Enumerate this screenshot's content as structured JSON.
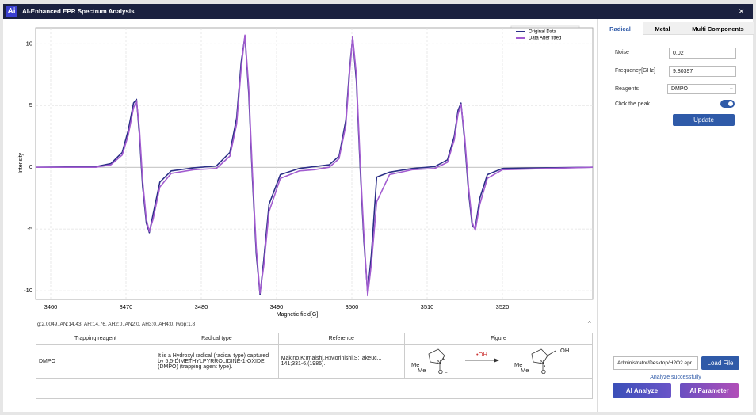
{
  "window": {
    "logo": "Ai",
    "title": "AI-Enhanced EPR Spectrum Analysis",
    "close": "×"
  },
  "chart_data": {
    "type": "line",
    "x_label": "Magnetic field[G]",
    "y_label": "Intensity",
    "x": [
      3458,
      3466,
      3468,
      3469.5,
      3470.3,
      3471,
      3471.4,
      3471.8,
      3472.2,
      3472.7,
      3473.1,
      3473.6,
      3474.5,
      3476,
      3479,
      3482,
      3483.8,
      3484.7,
      3485.3,
      3485.8,
      3486.3,
      3486.8,
      3487.3,
      3487.8,
      3488.3,
      3489,
      3490.5,
      3493,
      3495,
      3497,
      3498.3,
      3499.2,
      3499.7,
      3500.1,
      3500.6,
      3501.1,
      3501.6,
      3502.1,
      3502.6,
      3503.3,
      3505,
      3508,
      3511,
      3512.7,
      3513.6,
      3514.1,
      3514.5,
      3515,
      3515.5,
      3516,
      3516.4,
      3517,
      3518,
      3520,
      3532
    ],
    "series": [
      {
        "name": "Original Data",
        "color": "#2b2f86",
        "values": [
          0,
          0.05,
          0.3,
          1.2,
          3,
          5.2,
          5.5,
          2.5,
          -1.5,
          -4.5,
          -5.3,
          -3.8,
          -1.2,
          -0.3,
          -0.05,
          0.1,
          1.2,
          4,
          8.5,
          10.6,
          6,
          -1,
          -7,
          -10.3,
          -7.5,
          -3,
          -0.6,
          -0.1,
          0.05,
          0.2,
          0.9,
          3.8,
          8,
          10.5,
          7,
          0,
          -6,
          -10.2,
          -7,
          -0.8,
          -0.4,
          -0.1,
          0.05,
          0.6,
          2.5,
          4.6,
          5.2,
          2,
          -2,
          -4.8,
          -4.9,
          -2.5,
          -0.6,
          -0.1,
          0
        ]
      },
      {
        "name": "Data After fitted",
        "color": "#a25cd0",
        "values": [
          0,
          0,
          0.2,
          1,
          2.6,
          4.8,
          5.4,
          3,
          -1,
          -4.2,
          -5.2,
          -4.2,
          -1.6,
          -0.5,
          -0.2,
          -0.1,
          0.9,
          3.5,
          8,
          10.7,
          6.5,
          -0.5,
          -6.5,
          -10.2,
          -8,
          -3.6,
          -0.9,
          -0.3,
          -0.2,
          0,
          0.7,
          3.4,
          7.6,
          10.6,
          7.5,
          0.5,
          -5.5,
          -10.4,
          -7.8,
          -2.8,
          -0.6,
          -0.2,
          -0.1,
          0.4,
          2.2,
          4.3,
          5.1,
          2.4,
          -1.6,
          -4.5,
          -5.1,
          -3,
          -0.9,
          -0.2,
          0
        ]
      }
    ],
    "xlim": [
      3458,
      3532
    ],
    "ylim": [
      -10.7,
      11.3
    ],
    "xticks": [
      3460,
      3470,
      3480,
      3490,
      3500,
      3510,
      3520
    ],
    "yticks": [
      -10,
      -5,
      0,
      5,
      10
    ],
    "grid": true,
    "legend": "upper right"
  },
  "results": {
    "parameters": "g:2.0049, AN:14.43, AH:14.76, AH2:0, AN2:0, AH3:0, AH4:0, lwpp:1.8",
    "table": {
      "headers": [
        "Trapping reagent",
        "Radical type",
        "Reference",
        "Figure"
      ],
      "rows": [
        [
          "DMPO",
          "It is a Hydroxyl radical (radical type) captured by 5,5-DIMETHYLPYRROLIDINE-1-OXIDE (DMPO) (trapping agent type).",
          "Makino,K;Imaishi,H;Morinishi,S;Takeuc... 141;331-6,(1986)."
        ]
      ],
      "figure_labels": [
        "Me",
        "Me",
        "N",
        "+",
        "O",
        "–",
        "•OH",
        "Me",
        "Me",
        "N",
        "O",
        "•",
        "OH"
      ]
    }
  },
  "panel": {
    "tabs": [
      "Radical",
      "Metal",
      "Multi Components"
    ],
    "fields": [
      {
        "label": "Noise",
        "value": "0.02"
      },
      {
        "label": "Frequency[GHz]",
        "value": "9.80397"
      },
      {
        "label": "Reagents",
        "value": "DMPO"
      }
    ],
    "toggle_label": "Click the peak",
    "update": "Update",
    "file_path": "Administrator/Desktop/H2O2.epr",
    "load": "Load File",
    "status": "Analyze successfully",
    "analyze": "AI Analyze",
    "parameter": "AI Parameter"
  }
}
